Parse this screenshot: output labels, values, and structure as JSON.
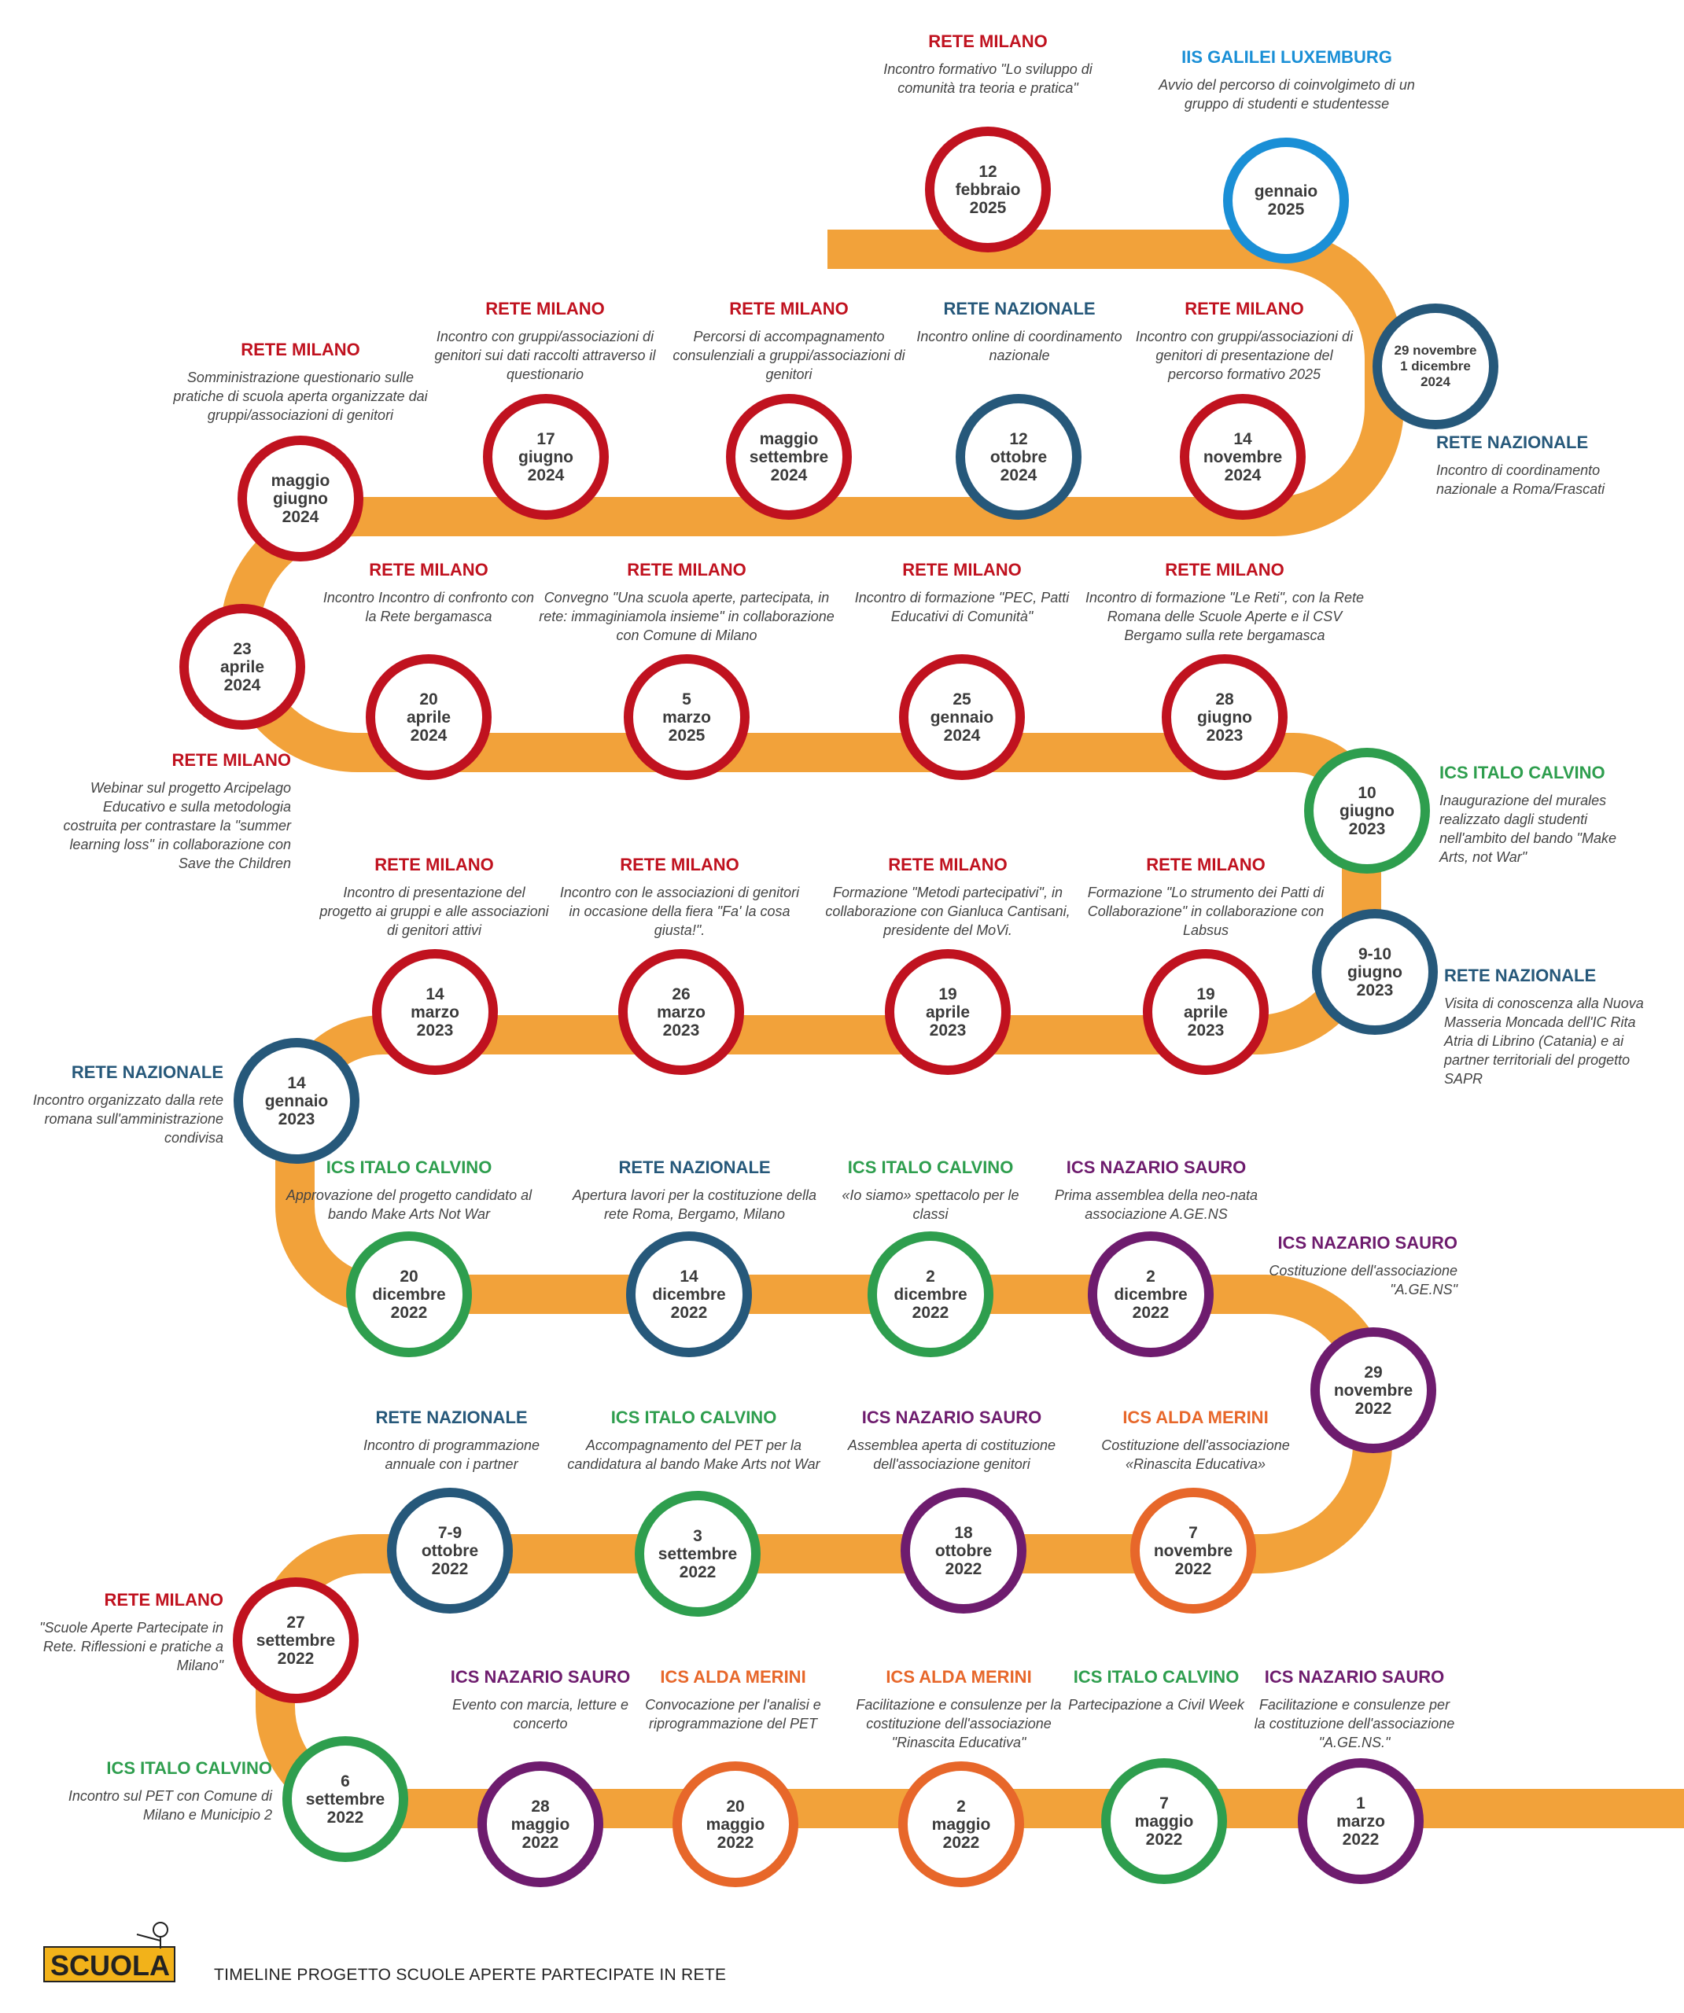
{
  "colors": {
    "road": "#F2A23A",
    "milano": "#C0121F",
    "nazionale": "#26587A",
    "calvino": "#2E9E4E",
    "sauro": "#6E1C6E",
    "merini": "#E7672A",
    "galilei": "#1A8FD6"
  },
  "footer": {
    "title": "TIMELINE PROGETTO SCUOLE APERTE PARTECIPATE IN RETE",
    "logo_text": "SCUOLA"
  },
  "nodes": [
    {
      "lines": [
        "12",
        "febbraio",
        "2025"
      ],
      "color": "milano"
    },
    {
      "lines": [
        "gennaio",
        "2025"
      ],
      "color": "galilei"
    },
    {
      "lines": [
        "29 novembre",
        "1 dicembre",
        "2024"
      ],
      "color": "nazionale",
      "small": true
    },
    {
      "lines": [
        "14",
        "novembre",
        "2024"
      ],
      "color": "milano"
    },
    {
      "lines": [
        "12",
        "ottobre",
        "2024"
      ],
      "color": "nazionale"
    },
    {
      "lines": [
        "maggio",
        "settembre",
        "2024"
      ],
      "color": "milano"
    },
    {
      "lines": [
        "17",
        "giugno",
        "2024"
      ],
      "color": "milano"
    },
    {
      "lines": [
        "maggio",
        "giugno",
        "2024"
      ],
      "color": "milano"
    },
    {
      "lines": [
        "23",
        "aprile",
        "2024"
      ],
      "color": "milano"
    },
    {
      "lines": [
        "20",
        "aprile",
        "2024"
      ],
      "color": "milano"
    },
    {
      "lines": [
        "5",
        "marzo",
        "2025"
      ],
      "color": "milano"
    },
    {
      "lines": [
        "25",
        "gennaio",
        "2024"
      ],
      "color": "milano"
    },
    {
      "lines": [
        "28",
        "giugno",
        "2023"
      ],
      "color": "milano"
    },
    {
      "lines": [
        "10",
        "giugno",
        "2023"
      ],
      "color": "calvino"
    },
    {
      "lines": [
        "9-10",
        "giugno",
        "2023"
      ],
      "color": "nazionale"
    },
    {
      "lines": [
        "19",
        "aprile",
        "2023"
      ],
      "color": "milano"
    },
    {
      "lines": [
        "19",
        "aprile",
        "2023"
      ],
      "color": "milano"
    },
    {
      "lines": [
        "26",
        "marzo",
        "2023"
      ],
      "color": "milano"
    },
    {
      "lines": [
        "14",
        "marzo",
        "2023"
      ],
      "color": "milano"
    },
    {
      "lines": [
        "14",
        "gennaio",
        "2023"
      ],
      "color": "nazionale"
    },
    {
      "lines": [
        "20",
        "dicembre",
        "2022"
      ],
      "color": "calvino"
    },
    {
      "lines": [
        "14",
        "dicembre",
        "2022"
      ],
      "color": "nazionale"
    },
    {
      "lines": [
        "2",
        "dicembre",
        "2022"
      ],
      "color": "calvino"
    },
    {
      "lines": [
        "2",
        "dicembre",
        "2022"
      ],
      "color": "sauro"
    },
    {
      "lines": [
        "29",
        "novembre",
        "2022"
      ],
      "color": "sauro"
    },
    {
      "lines": [
        "7",
        "novembre",
        "2022"
      ],
      "color": "merini"
    },
    {
      "lines": [
        "18",
        "ottobre",
        "2022"
      ],
      "color": "sauro"
    },
    {
      "lines": [
        "3",
        "settembre",
        "2022"
      ],
      "color": "calvino"
    },
    {
      "lines": [
        "7-9",
        "ottobre",
        "2022"
      ],
      "color": "nazionale"
    },
    {
      "lines": [
        "27",
        "settembre",
        "2022"
      ],
      "color": "milano"
    },
    {
      "lines": [
        "6",
        "settembre",
        "2022"
      ],
      "color": "calvino"
    },
    {
      "lines": [
        "28",
        "maggio",
        "2022"
      ],
      "color": "sauro"
    },
    {
      "lines": [
        "20",
        "maggio",
        "2022"
      ],
      "color": "merini"
    },
    {
      "lines": [
        "2",
        "maggio",
        "2022"
      ],
      "color": "merini"
    },
    {
      "lines": [
        "7",
        "maggio",
        "2022"
      ],
      "color": "calvino"
    },
    {
      "lines": [
        "1",
        "marzo",
        "2022"
      ],
      "color": "sauro"
    }
  ],
  "labels": [
    {
      "org": "RETE MILANO",
      "color": "milano",
      "desc": "Incontro formativo \"Lo sviluppo di comunità tra teoria e pratica\""
    },
    {
      "org": "IIS GALILEI LUXEMBURG",
      "color": "galilei",
      "desc": "Avvio del percorso di coinvolgimeto di un gruppo di studenti e studentesse"
    },
    {
      "org": "RETE NAZIONALE",
      "color": "nazionale",
      "desc": "Incontro di coordinamento nazionale a Roma/Frascati"
    },
    {
      "org": "RETE MILANO",
      "color": "milano",
      "desc": "Incontro con gruppi/associazioni di genitori di presentazione del percorso formativo 2025"
    },
    {
      "org": "RETE NAZIONALE",
      "color": "nazionale",
      "desc": "Incontro online di coordinamento nazionale"
    },
    {
      "org": "RETE MILANO",
      "color": "milano",
      "desc": "Percorsi di accompagnamento consulenziali a gruppi/associazioni di genitori"
    },
    {
      "org": "RETE MILANO",
      "color": "milano",
      "desc": "Incontro con gruppi/associazioni di genitori sui dati raccolti attraverso il questionario"
    },
    {
      "org": "RETE MILANO",
      "color": "milano",
      "desc": "Somministrazione questionario sulle pratiche di scuola aperta organizzate dai gruppi/associazioni di genitori"
    },
    {
      "org": "RETE MILANO",
      "color": "milano",
      "desc": "Webinar sul progetto Arcipelago Educativo e sulla metodologia costruita per contrastare la \"summer learning loss\" in collaborazione con Save the Children"
    },
    {
      "org": "RETE MILANO",
      "color": "milano",
      "desc": "Incontro Incontro di confronto con la Rete bergamasca"
    },
    {
      "org": "RETE MILANO",
      "color": "milano",
      "desc": "Convegno \"Una scuola aperte, partecipata, in rete: immaginiamola insieme\" in collaborazione con Comune di Milano"
    },
    {
      "org": "RETE MILANO",
      "color": "milano",
      "desc": "Incontro di formazione \"PEC, Patti Educativi di Comunità\""
    },
    {
      "org": "RETE MILANO",
      "color": "milano",
      "desc": "Incontro di formazione \"Le Reti\", con la Rete Romana delle Scuole Aperte e il CSV Bergamo sulla rete bergamasca"
    },
    {
      "org": "ICS ITALO CALVINO",
      "color": "calvino",
      "desc": "Inaugurazione del murales realizzato dagli studenti nell'ambito del bando \"Make Arts, not War\""
    },
    {
      "org": "RETE NAZIONALE",
      "color": "nazionale",
      "desc": "Visita di conoscenza alla Nuova Masseria Moncada dell'IC Rita Atria di Librino (Catania) e ai partner territoriali del progetto SAPR"
    },
    {
      "org": "RETE MILANO",
      "color": "milano",
      "desc": "Formazione \"Lo strumento dei Patti di Collaborazione\" in collaborazione con Labsus"
    },
    {
      "org": "RETE MILANO",
      "color": "milano",
      "desc": "Formazione \"Metodi partecipativi\", in collaborazione con Gianluca Cantisani, presidente del MoVi."
    },
    {
      "org": "RETE MILANO",
      "color": "milano",
      "desc": "Incontro con le associazioni di genitori in occasione della fiera \"Fa' la cosa giusta!\"."
    },
    {
      "org": "RETE MILANO",
      "color": "milano",
      "desc": "Incontro di presentazione del progetto ai gruppi e alle associazioni di genitori attivi"
    },
    {
      "org": "RETE NAZIONALE",
      "color": "nazionale",
      "desc": "Incontro organizzato dalla rete romana sull'amministrazione condivisa"
    },
    {
      "org": "ICS ITALO CALVINO",
      "color": "calvino",
      "desc": "Approvazione del progetto candidato al bando Make Arts Not War"
    },
    {
      "org": "RETE NAZIONALE",
      "color": "nazionale",
      "desc": "Apertura lavori per la costituzione della rete Roma, Bergamo, Milano"
    },
    {
      "org": "ICS ITALO CALVINO",
      "color": "calvino",
      "desc": "«Io siamo» spettacolo per le classi"
    },
    {
      "org": "ICS NAZARIO SAURO",
      "color": "sauro",
      "desc": "Prima assemblea della neo-nata associazione A.GE.NS"
    },
    {
      "org": "ICS NAZARIO SAURO",
      "color": "sauro",
      "desc": "Costituzione dell'associazione \"A.GE.NS\""
    },
    {
      "org": "ICS ALDA MERINI",
      "color": "merini",
      "desc": "Costituzione dell'associazione «Rinascita Educativa»"
    },
    {
      "org": "ICS NAZARIO SAURO",
      "color": "sauro",
      "desc": "Assemblea aperta di costituzione dell'associazione genitori"
    },
    {
      "org": "ICS ITALO CALVINO",
      "color": "calvino",
      "desc": "Accompagnamento del PET per la candidatura al bando Make Arts not War"
    },
    {
      "org": "RETE NAZIONALE",
      "color": "nazionale",
      "desc": "Incontro di programmazione annuale con i partner"
    },
    {
      "org": "RETE MILANO",
      "color": "milano",
      "desc": "\"Scuole Aperte Partecipate in Rete. Riflessioni e pratiche a Milano\""
    },
    {
      "org": "ICS ITALO CALVINO",
      "color": "calvino",
      "desc": "Incontro sul PET con Comune di Milano e Municipio 2"
    },
    {
      "org": "ICS NAZARIO SAURO",
      "color": "sauro",
      "desc": "Evento con marcia, letture e concerto"
    },
    {
      "org": "ICS ALDA MERINI",
      "color": "merini",
      "desc": "Convocazione per l'analisi e riprogrammazione del PET"
    },
    {
      "org": "ICS ALDA MERINI",
      "color": "merini",
      "desc": "Facilitazione e consulenze per la costituzione dell'associazione \"Rinascita Educativa\""
    },
    {
      "org": "ICS ITALO CALVINO",
      "color": "calvino",
      "desc": "Partecipazione a Civil Week"
    },
    {
      "org": "ICS NAZARIO SAURO",
      "color": "sauro",
      "desc": "Facilitazione e consulenze per la costituzione dell'associazione \"A.GE.NS.\""
    }
  ]
}
